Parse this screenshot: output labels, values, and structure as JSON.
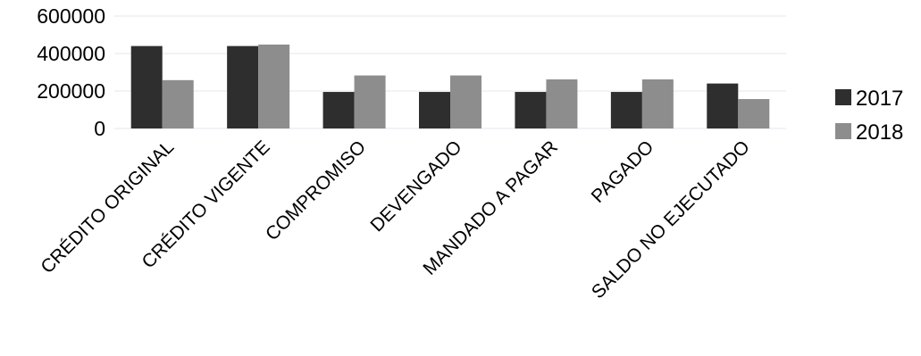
{
  "chart_data": {
    "type": "bar",
    "categories": [
      "CRÉDITO ORIGINAL",
      "CRÉDITO VIGENTE",
      "COMPROMISO",
      "DEVENGADO",
      "MANDADO A PAGAR",
      "PAGADO",
      "SALDO NO EJECUTADO"
    ],
    "series": [
      {
        "name": "2017",
        "values": [
          440000,
          440000,
          195000,
          195000,
          195000,
          195000,
          240000
        ],
        "color": "#2e2e2e"
      },
      {
        "name": "2018",
        "values": [
          258000,
          448000,
          283000,
          283000,
          262000,
          262000,
          157000
        ],
        "color": "#8d8d8d"
      }
    ],
    "ylim": [
      0,
      600000
    ],
    "yticks": [
      "600000",
      "400000",
      "200000",
      "0"
    ],
    "ytick_values": [
      600000,
      400000,
      200000,
      0
    ],
    "grid": true,
    "legend": "right",
    "title": "",
    "xlabel": "",
    "ylabel": ""
  }
}
